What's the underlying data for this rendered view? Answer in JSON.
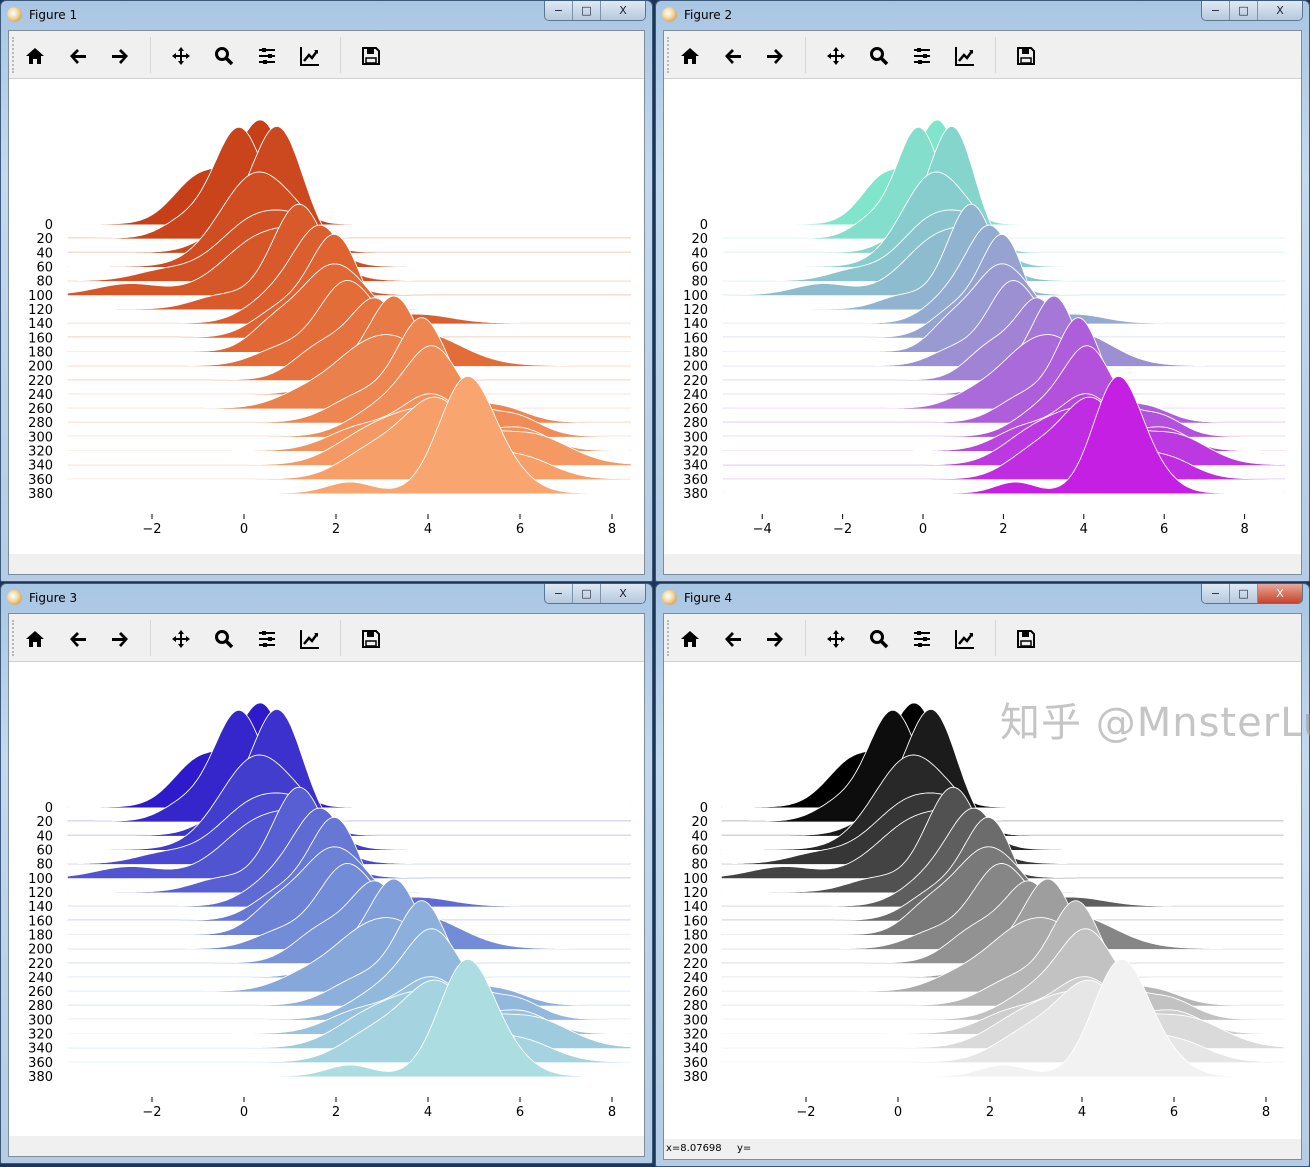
{
  "toolbar": {
    "items": [
      {
        "icon": "home-icon",
        "label": "Home"
      },
      {
        "icon": "back-arrow-icon",
        "label": "Back"
      },
      {
        "icon": "forward-arrow-icon",
        "label": "Forward"
      },
      {
        "icon": "pan-move-icon",
        "label": "Pan"
      },
      {
        "icon": "zoom-magnifier-icon",
        "label": "Zoom"
      },
      {
        "icon": "subplots-sliders-icon",
        "label": "Subplots"
      },
      {
        "icon": "edit-axis-chart-icon",
        "label": "Customize"
      },
      {
        "icon": "save-floppy-icon",
        "label": "Save"
      }
    ]
  },
  "window_buttons": {
    "minimize": "−",
    "maximize": "□",
    "close": "X"
  },
  "windows": [
    {
      "title": "Figure 1",
      "status_x": "",
      "status_y": "",
      "active": false
    },
    {
      "title": "Figure 2",
      "status_x": "",
      "status_y": "",
      "active": false
    },
    {
      "title": "Figure 3",
      "status_x": "",
      "status_y": "",
      "active": false
    },
    {
      "title": "Figure 4",
      "status_x": "x=8.07698",
      "status_y": "y=",
      "active": true
    }
  ],
  "watermark": "知乎 @MnsterLu",
  "chart_data": {
    "type": "area",
    "style": "ridgeline (joyplot), later rows drawn in front, white outlines",
    "ytick_labels": [
      "0",
      "20",
      "40",
      "60",
      "80",
      "100",
      "120",
      "140",
      "160",
      "180",
      "200",
      "220",
      "240",
      "260",
      "280",
      "300",
      "320",
      "340",
      "360",
      "380"
    ],
    "series": [
      {
        "name": "0",
        "peaks": [
          [
            0.4,
            0.5,
            0.9
          ],
          [
            -0.9,
            0.6,
            0.45
          ]
        ]
      },
      {
        "name": "20",
        "peaks": [
          [
            -0.1,
            0.55,
            1.0
          ],
          [
            -1.3,
            0.5,
            0.15
          ]
        ]
      },
      {
        "name": "40",
        "peaks": [
          [
            0.75,
            0.55,
            1.1
          ],
          [
            -0.3,
            0.6,
            0.2
          ]
        ]
      },
      {
        "name": "60",
        "peaks": [
          [
            0.3,
            0.8,
            0.85
          ],
          [
            1.5,
            0.5,
            0.15
          ]
        ]
      },
      {
        "name": "80",
        "peaks": [
          [
            0.4,
            0.9,
            0.6
          ],
          [
            1.4,
            0.5,
            0.2
          ],
          [
            -1.8,
            0.6,
            0.08
          ]
        ]
      },
      {
        "name": "100",
        "peaks": [
          [
            0.5,
            0.9,
            0.55
          ],
          [
            1.5,
            0.5,
            0.25
          ],
          [
            -2.5,
            0.7,
            0.1
          ]
        ]
      },
      {
        "name": "120",
        "peaks": [
          [
            1.2,
            0.6,
            0.95
          ],
          [
            -0.5,
            0.6,
            0.12
          ]
        ]
      },
      {
        "name": "140",
        "peaks": [
          [
            1.7,
            0.6,
            0.85
          ],
          [
            0.6,
            0.6,
            0.2
          ],
          [
            3.8,
            0.7,
            0.08
          ]
        ]
      },
      {
        "name": "160",
        "peaks": [
          [
            2.0,
            0.55,
            0.9
          ],
          [
            0.8,
            0.6,
            0.25
          ]
        ]
      },
      {
        "name": "180",
        "peaks": [
          [
            1.9,
            0.7,
            0.75
          ],
          [
            0.6,
            0.5,
            0.2
          ],
          [
            3.0,
            0.6,
            0.2
          ]
        ]
      },
      {
        "name": "200",
        "peaks": [
          [
            2.2,
            0.6,
            0.7
          ],
          [
            3.8,
            0.9,
            0.3
          ],
          [
            0.8,
            0.6,
            0.15
          ]
        ]
      },
      {
        "name": "220",
        "peaks": [
          [
            2.9,
            0.55,
            0.7
          ],
          [
            1.7,
            0.6,
            0.3
          ]
        ]
      },
      {
        "name": "240",
        "peaks": [
          [
            3.3,
            0.55,
            0.85
          ],
          [
            2.2,
            0.6,
            0.2
          ]
        ]
      },
      {
        "name": "260",
        "peaks": [
          [
            2.7,
            0.8,
            0.55
          ],
          [
            3.7,
            0.6,
            0.3
          ],
          [
            1.2,
            0.6,
            0.1
          ]
        ]
      },
      {
        "name": "280",
        "peaks": [
          [
            3.9,
            0.55,
            0.9
          ],
          [
            2.6,
            0.7,
            0.25
          ],
          [
            5.5,
            0.6,
            0.15
          ]
        ]
      },
      {
        "name": "300",
        "peaks": [
          [
            4.15,
            0.6,
            0.75
          ],
          [
            3.0,
            0.7,
            0.25
          ],
          [
            5.8,
            0.6,
            0.2
          ]
        ]
      },
      {
        "name": "320",
        "peaks": [
          [
            4.1,
            0.7,
            0.5
          ],
          [
            2.5,
            0.7,
            0.2
          ],
          [
            6.0,
            0.6,
            0.2
          ]
        ]
      },
      {
        "name": "340",
        "peaks": [
          [
            4.0,
            1.0,
            0.5
          ],
          [
            6.3,
            0.8,
            0.25
          ],
          [
            2.5,
            0.7,
            0.15
          ]
        ]
      },
      {
        "name": "360",
        "peaks": [
          [
            4.2,
            0.7,
            0.7
          ],
          [
            2.8,
            0.7,
            0.25
          ],
          [
            6.0,
            0.7,
            0.2
          ]
        ]
      },
      {
        "name": "380",
        "peaks": [
          [
            4.85,
            0.6,
            1.05
          ],
          [
            2.3,
            0.5,
            0.1
          ],
          [
            5.9,
            0.5,
            0.1
          ]
        ]
      }
    ],
    "panels": [
      {
        "xlim": [
          -3.83,
          8.41
        ],
        "xticks": [
          "−2",
          "0",
          "2",
          "4",
          "6",
          "8"
        ],
        "xtick_values": [
          -2,
          0,
          2,
          4,
          6,
          8
        ],
        "colors": [
          "#c63f17",
          "#e26a36",
          "#f9a56f"
        ]
      },
      {
        "xlim": [
          -4.97,
          9.0
        ],
        "xticks": [
          "−4",
          "−2",
          "0",
          "2",
          "4",
          "6",
          "8"
        ],
        "xtick_values": [
          -4,
          -2,
          0,
          2,
          4,
          6,
          8
        ],
        "colors": [
          "#80e6cb",
          "#9a96d2",
          "#c51fe4"
        ]
      },
      {
        "xlim": [
          -3.83,
          8.41
        ],
        "xticks": [
          "−2",
          "0",
          "2",
          "4",
          "6",
          "8"
        ],
        "xtick_values": [
          -2,
          0,
          2,
          4,
          6,
          8
        ],
        "colors": [
          "#2e1acb",
          "#7088d6",
          "#abdde1"
        ]
      },
      {
        "xlim": [
          -3.83,
          8.38
        ],
        "xticks": [
          "−2",
          "0",
          "2",
          "4",
          "6",
          "8"
        ],
        "xtick_values": [
          -2,
          0,
          2,
          4,
          6,
          8
        ],
        "colors": [
          "#000000",
          "#808080",
          "#f2f2f2"
        ]
      }
    ]
  }
}
